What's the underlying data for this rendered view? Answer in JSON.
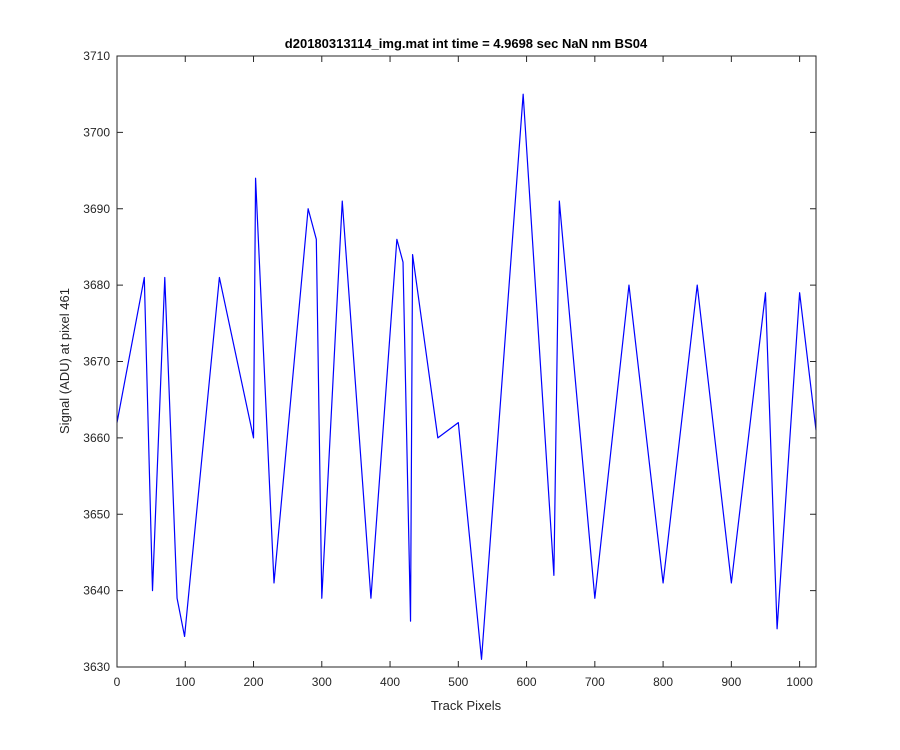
{
  "chart_data": {
    "type": "line",
    "title": "d20180313114_img.mat int time = 4.9698 sec  NaN nm BS04",
    "xlabel": "Track Pixels",
    "ylabel": "Signal (ADU) at pixel 461",
    "xlim": [
      0,
      1024
    ],
    "ylim": [
      3630,
      3710
    ],
    "xticks": [
      0,
      100,
      200,
      300,
      400,
      500,
      600,
      700,
      800,
      900,
      1000
    ],
    "yticks": [
      3630,
      3640,
      3650,
      3660,
      3670,
      3680,
      3690,
      3700,
      3710
    ],
    "grid": false,
    "legend": "none",
    "series": [
      {
        "color": "#0000ff",
        "x": [
          0,
          40,
          52,
          70,
          88,
          99,
          150,
          200,
          203,
          230,
          280,
          292,
          300,
          330,
          372,
          410,
          419,
          430,
          433,
          470,
          500,
          534,
          595,
          640,
          648,
          700,
          750,
          800,
          850,
          900,
          950,
          967,
          1000,
          1024
        ],
        "values": [
          3662,
          3681,
          3640,
          3681,
          3639,
          3634,
          3681,
          3660,
          3694,
          3641,
          3690,
          3686,
          3639,
          3691,
          3639,
          3686,
          3683,
          3636,
          3684,
          3660,
          3662,
          3631,
          3705,
          3642,
          3691,
          3639,
          3680,
          3641,
          3680,
          3641,
          3679,
          3635,
          3679,
          3661
        ]
      }
    ]
  }
}
